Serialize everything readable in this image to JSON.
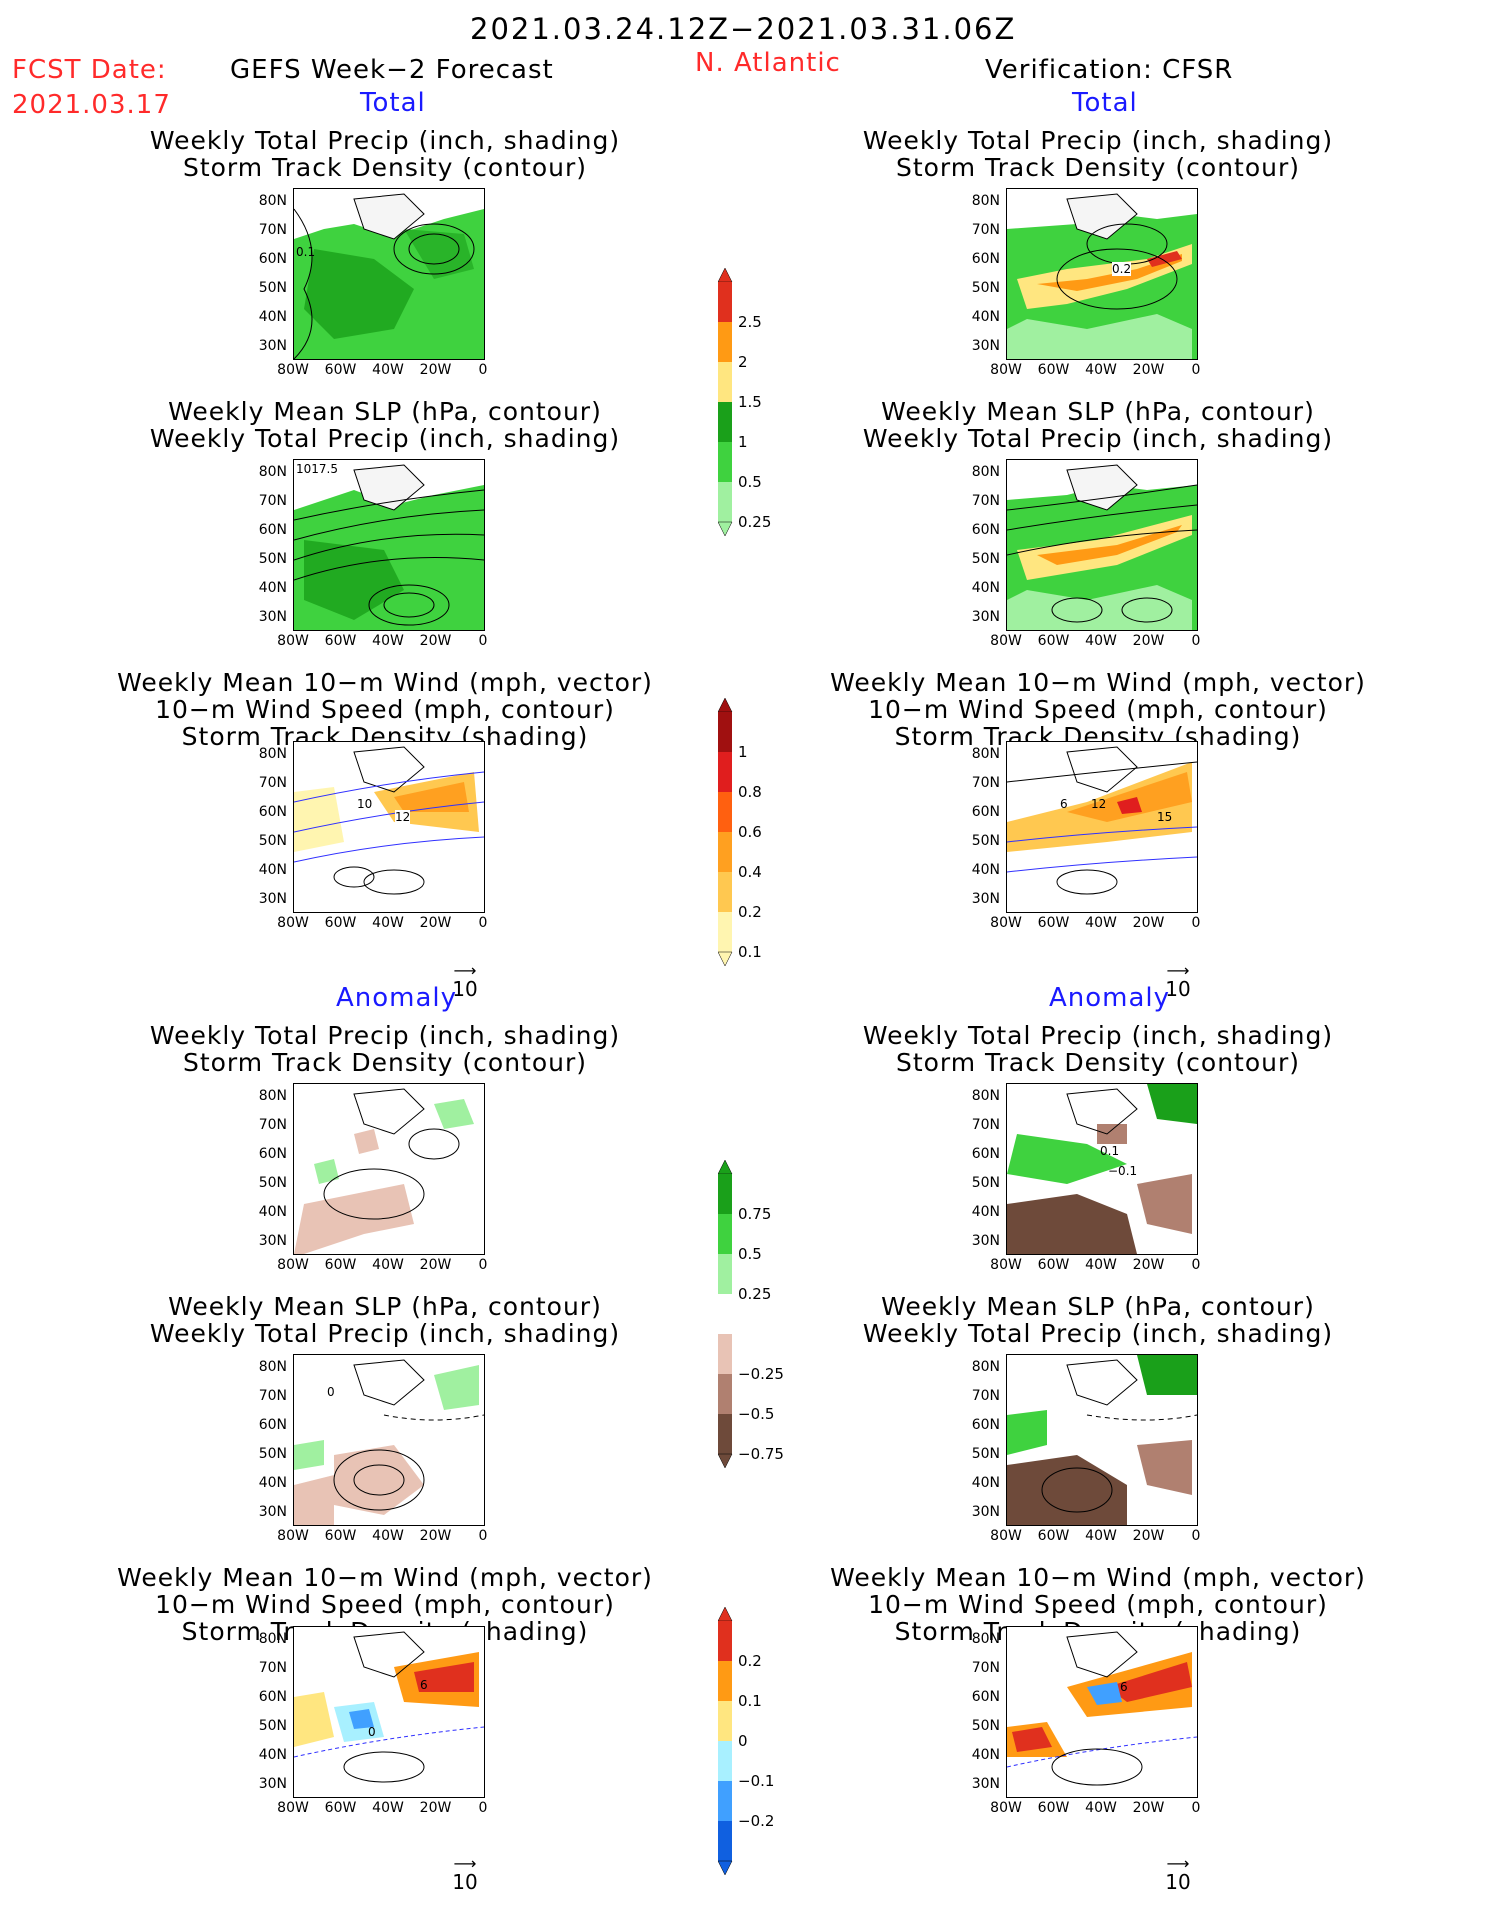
{
  "header": {
    "date_range": "2021.03.24.12Z−2021.03.31.06Z",
    "fcst_label": "FCST Date:",
    "fcst_date": "2021.03.17",
    "left_title": "GEFS Week−2 Forecast",
    "region": "N. Atlantic",
    "right_title": "Verification: CFSR"
  },
  "sections": {
    "total": "Total",
    "anomaly": "Anomaly"
  },
  "panels": {
    "p1": [
      "Weekly Total Precip (inch, shading)",
      "Storm Track Density (contour)"
    ],
    "p2": [
      "Weekly Mean SLP (hPa, contour)",
      "Weekly Total Precip (inch, shading)"
    ],
    "p3": [
      "Weekly Mean 10−m Wind (mph, vector)",
      "10−m Wind Speed (mph, contour)",
      "Storm Track Density (shading)"
    ]
  },
  "axes": {
    "lat": [
      "80N",
      "70N",
      "60N",
      "50N",
      "40N",
      "30N"
    ],
    "lon": [
      "80W",
      "60W",
      "40W",
      "20W",
      "0"
    ]
  },
  "vector_ref": "10",
  "map_labels": {
    "fc_total_p1": "0.1",
    "fc_total_p2": "1017.5",
    "fc_total_p3a": "10",
    "fc_total_p3b": "12",
    "vf_total_p1": "0.2",
    "vf_total_p3a": "6",
    "vf_total_p3b": "12",
    "vf_total_p3c": "15",
    "vf_anom_p1a": "0.1",
    "vf_anom_p1b": "−0.1",
    "fc_anom_p2": "0",
    "fc_anom_p3a": "6",
    "fc_anom_p3b": "0",
    "vf_anom_p3": "6"
  },
  "colorbars": {
    "precip_total": {
      "labels": [
        "2.5",
        "2",
        "1.5",
        "1",
        "0.5",
        "0.25"
      ],
      "colors": [
        "#e0301e",
        "#ff9a14",
        "#ffe680",
        "#1aa01a",
        "#3fd23f",
        "#a0f0a0"
      ]
    },
    "storm_total": {
      "labels": [
        "1",
        "0.8",
        "0.6",
        "0.4",
        "0.2",
        "0.1"
      ],
      "colors": [
        "#a01010",
        "#e01e1e",
        "#ff6010",
        "#ffa020",
        "#ffc850",
        "#fff5b0"
      ]
    },
    "precip_anom": {
      "labels": [
        "0.75",
        "0.5",
        "0.25",
        "−0.25",
        "−0.5",
        "−0.75"
      ],
      "colors": [
        "#1aa01a",
        "#3fd23f",
        "#a0f0a0",
        "#ffffff",
        "#e8c3b5",
        "#b08070",
        "#6e4a3a"
      ]
    },
    "storm_anom": {
      "labels": [
        "0.2",
        "0.1",
        "0",
        "−0.1",
        "−0.2"
      ],
      "colors": [
        "#e0301e",
        "#ff9a14",
        "#ffe680",
        "#a8f0ff",
        "#40a0ff",
        "#1060e0"
      ]
    }
  }
}
